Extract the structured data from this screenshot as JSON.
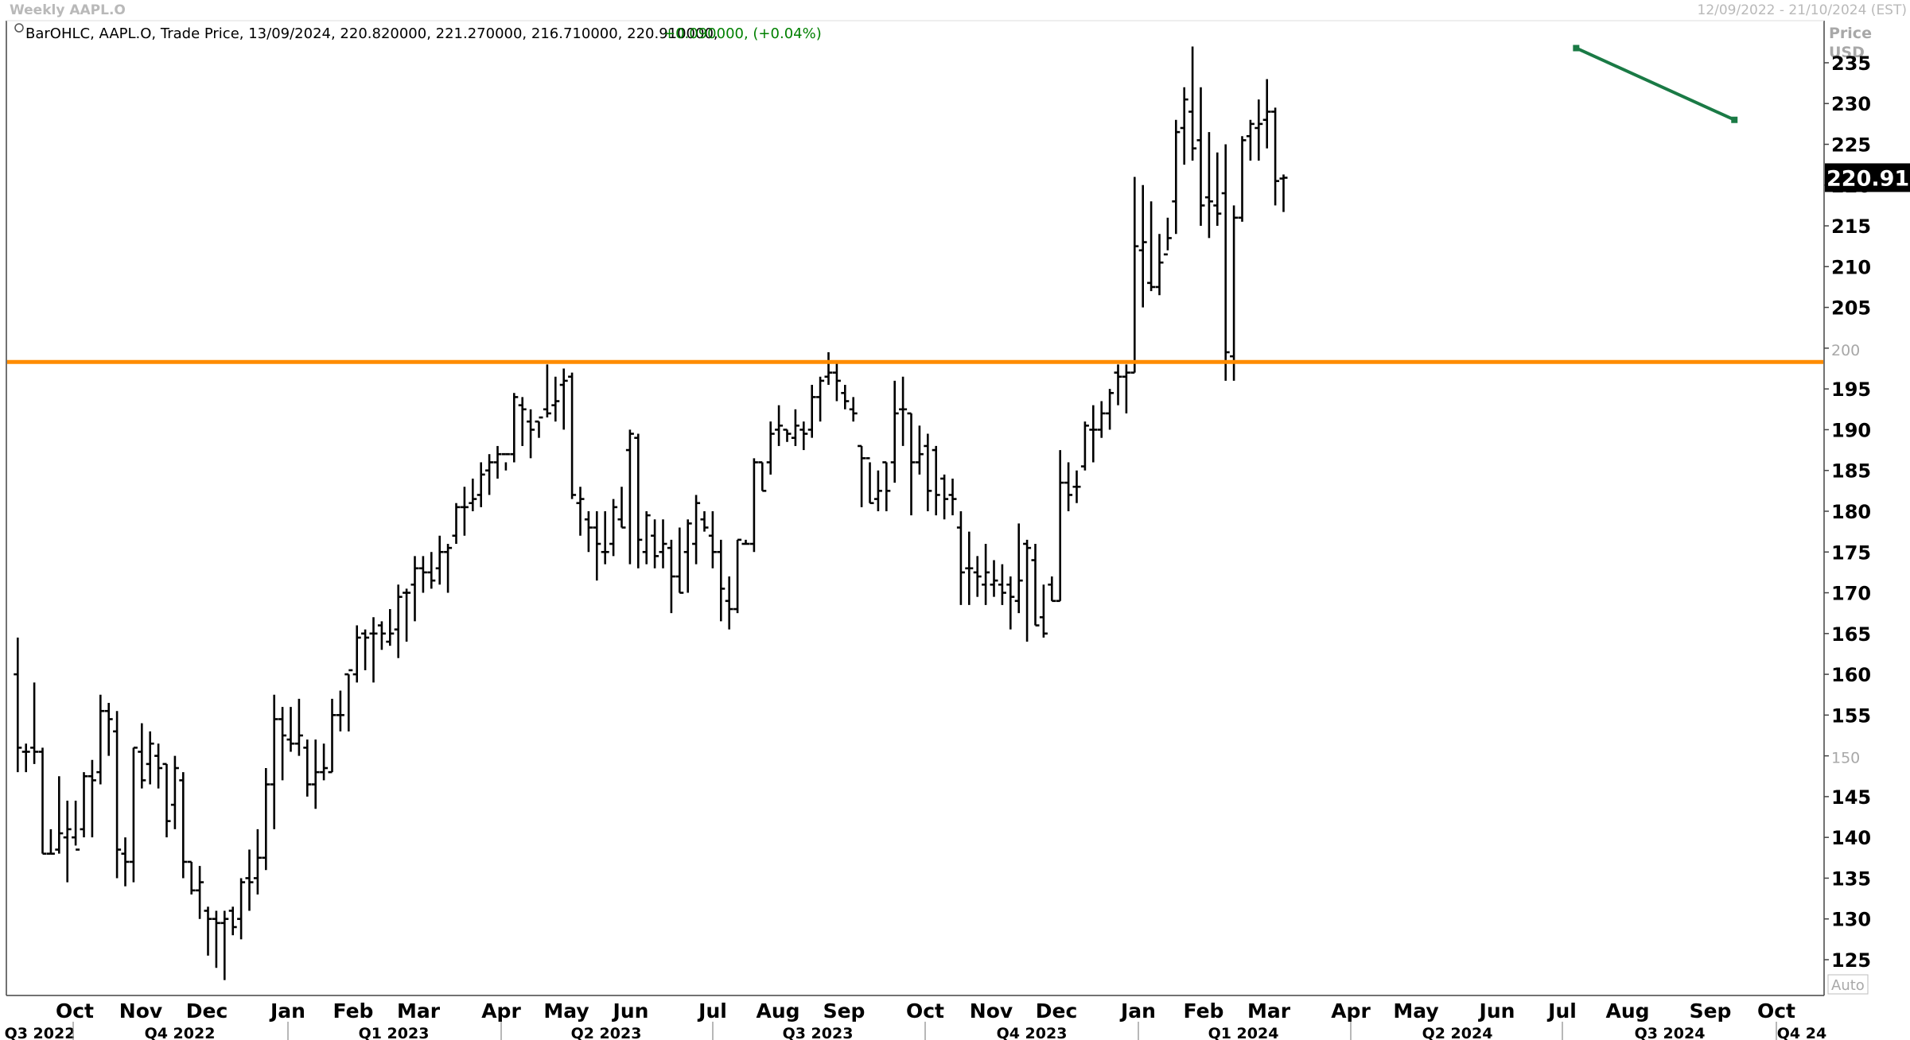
{
  "window": {
    "title": "Weekly AAPL.O",
    "date_range": "12/09/2022 - 21/10/2024 (EST)"
  },
  "legend": {
    "text": "BarOHLC, AAPL.O, Trade Price, 13/09/2024, 220.820000, 221.270000, 216.710000, 220.910000,",
    "change": "+0.090000, (+0.04%)"
  },
  "price_axis": {
    "header": "Price",
    "unit": "USD",
    "last_price": "220.910",
    "auto_label": "Auto"
  },
  "colors": {
    "bars": "#000000",
    "support_line": "#ff8c00",
    "trend_line": "#1a7a45",
    "change_text": "#008000",
    "last_price_bg": "#000000"
  },
  "chart_data": {
    "type": "ohlc",
    "symbol": "AAPL.O",
    "interval": "weekly",
    "ylim": [
      121,
      240
    ],
    "y_ticks": [
      125,
      130,
      135,
      140,
      145,
      150,
      155,
      160,
      165,
      170,
      175,
      180,
      185,
      190,
      195,
      200,
      205,
      210,
      215,
      220,
      225,
      230,
      235
    ],
    "y_minor_ticks": [
      150,
      200
    ],
    "x_months": [
      "Oct",
      "Nov",
      "Dec",
      "Jan",
      "Feb",
      "Mar",
      "Apr",
      "May",
      "Jun",
      "Jul",
      "Aug",
      "Sep",
      "Oct",
      "Nov",
      "Dec",
      "Jan",
      "Feb",
      "Mar",
      "Apr",
      "May",
      "Jun",
      "Jul",
      "Aug",
      "Sep",
      "Oct"
    ],
    "x_quarters": [
      "Q3 2022",
      "Q4 2022",
      "Q1 2023",
      "Q2 2023",
      "Q3 2023",
      "Q4 2023",
      "Q1 2024",
      "Q2 2024",
      "Q3 2024",
      "Q4 24"
    ],
    "series": [
      {
        "name": "AAPL.O",
        "bars": [
          [
            160.0,
            164.5,
            148.0,
            151.0
          ],
          [
            150.5,
            151.5,
            148.0,
            150.5
          ],
          [
            151.0,
            159.0,
            149.0,
            150.5
          ],
          [
            150.5,
            151.0,
            138.0,
            138.0
          ],
          [
            138.0,
            141.0,
            138.0,
            138.0
          ],
          [
            138.5,
            147.5,
            138.0,
            140.5
          ],
          [
            140.0,
            144.5,
            134.5,
            141.0
          ],
          [
            140.0,
            144.5,
            139.0,
            138.5
          ],
          [
            141.0,
            148.0,
            140.0,
            147.5
          ],
          [
            147.5,
            149.5,
            140.0,
            147.0
          ],
          [
            148.0,
            157.5,
            146.5,
            155.5
          ],
          [
            155.5,
            156.5,
            150.0,
            154.5
          ],
          [
            153.0,
            155.5,
            135.0,
            138.5
          ],
          [
            138.0,
            140.0,
            134.0,
            137.0
          ],
          [
            137.0,
            151.0,
            134.5,
            151.0
          ],
          [
            150.5,
            154.0,
            146.0,
            147.0
          ],
          [
            149.0,
            153.0,
            146.5,
            151.5
          ],
          [
            150.0,
            151.5,
            146.0,
            148.5
          ],
          [
            149.0,
            149.0,
            140.0,
            142.0
          ],
          [
            144.0,
            150.0,
            141.0,
            148.5
          ],
          [
            147.0,
            148.0,
            135.0,
            137.0
          ],
          [
            137.0,
            137.0,
            133.0,
            133.5
          ],
          [
            133.5,
            136.5,
            130.0,
            134.5
          ],
          [
            131.0,
            131.5,
            125.5,
            130.0
          ],
          [
            130.0,
            131.0,
            124.0,
            129.5
          ],
          [
            129.5,
            131.0,
            122.5,
            130.0
          ],
          [
            131.0,
            131.5,
            128.0,
            129.0
          ],
          [
            130.0,
            135.0,
            127.5,
            134.5
          ],
          [
            135.0,
            138.5,
            131.0,
            134.5
          ],
          [
            135.0,
            141.0,
            133.0,
            137.5
          ],
          [
            137.5,
            148.5,
            136.0,
            146.5
          ],
          [
            146.5,
            157.5,
            141.0,
            154.5
          ],
          [
            154.5,
            156.0,
            147.0,
            152.5
          ],
          [
            152.0,
            156.0,
            150.5,
            151.5
          ],
          [
            151.5,
            157.0,
            150.0,
            152.5
          ],
          [
            151.0,
            152.0,
            145.0,
            146.5
          ],
          [
            146.5,
            152.0,
            143.5,
            148.0
          ],
          [
            148.0,
            151.5,
            147.0,
            148.5
          ],
          [
            148.0,
            157.0,
            148.0,
            155.0
          ],
          [
            155.0,
            158.0,
            153.0,
            155.0
          ],
          [
            160.0,
            160.0,
            153.0,
            160.5
          ],
          [
            160.0,
            166.0,
            159.0,
            164.5
          ],
          [
            165.0,
            165.5,
            160.5,
            164.5
          ],
          [
            165.0,
            167.0,
            159.0,
            165.0
          ],
          [
            166.0,
            166.5,
            163.0,
            165.0
          ],
          [
            164.0,
            168.0,
            163.5,
            165.0
          ],
          [
            165.5,
            171.0,
            162.0,
            169.5
          ],
          [
            170.0,
            170.5,
            164.0,
            170.0
          ],
          [
            171.0,
            174.5,
            166.5,
            173.0
          ],
          [
            173.0,
            174.5,
            170.0,
            172.5
          ],
          [
            172.5,
            175.0,
            170.5,
            171.5
          ],
          [
            173.0,
            177.0,
            171.0,
            175.0
          ],
          [
            175.0,
            176.0,
            170.0,
            175.5
          ],
          [
            177.0,
            181.0,
            176.0,
            180.5
          ],
          [
            180.5,
            183.0,
            177.0,
            180.5
          ],
          [
            181.0,
            184.0,
            180.0,
            181.5
          ],
          [
            182.0,
            186.0,
            180.5,
            184.5
          ],
          [
            185.0,
            187.0,
            182.0,
            186.0
          ],
          [
            186.0,
            188.0,
            184.0,
            187.0
          ],
          [
            187.0,
            186.0,
            185.0,
            187.0
          ],
          [
            187.0,
            194.5,
            186.0,
            194.0
          ],
          [
            193.0,
            194.0,
            188.0,
            192.5
          ],
          [
            191.0,
            192.5,
            186.5,
            190.0
          ],
          [
            191.0,
            191.0,
            189.0,
            191.5
          ],
          [
            192.5,
            198.0,
            191.5,
            192.0
          ],
          [
            193.0,
            196.5,
            191.0,
            193.5
          ],
          [
            195.5,
            197.5,
            190.0,
            196.0
          ],
          [
            196.5,
            197.0,
            181.5,
            182.0
          ],
          [
            181.0,
            183.0,
            177.0,
            181.5
          ],
          [
            179.0,
            180.0,
            175.0,
            178.0
          ],
          [
            178.0,
            180.0,
            171.5,
            176.0
          ],
          [
            175.0,
            180.0,
            173.5,
            175.0
          ],
          [
            176.0,
            181.5,
            174.5,
            180.5
          ],
          [
            179.0,
            183.0,
            178.0,
            178.0
          ],
          [
            187.5,
            190.0,
            173.5,
            189.5
          ],
          [
            189.0,
            189.5,
            173.0,
            176.5
          ],
          [
            175.0,
            180.0,
            173.5,
            179.5
          ],
          [
            177.0,
            179.0,
            173.0,
            174.5
          ],
          [
            175.0,
            179.0,
            173.0,
            176.0
          ],
          [
            175.5,
            176.5,
            167.5,
            172.0
          ],
          [
            172.0,
            178.0,
            170.0,
            170.0
          ],
          [
            175.0,
            179.0,
            170.0,
            178.5
          ],
          [
            176.0,
            182.0,
            173.5,
            181.0
          ],
          [
            179.0,
            180.0,
            177.5,
            178.0
          ],
          [
            177.0,
            180.0,
            173.0,
            175.0
          ],
          [
            175.0,
            176.5,
            166.5,
            170.5
          ],
          [
            169.0,
            172.0,
            165.5,
            168.0
          ],
          [
            168.0,
            176.5,
            167.5,
            176.5
          ],
          [
            176.0,
            176.5,
            176.0,
            176.0
          ],
          [
            176.0,
            186.5,
            175.0,
            186.0
          ],
          [
            186.0,
            186.0,
            182.5,
            182.5
          ],
          [
            186.0,
            191.0,
            184.5,
            189.5
          ],
          [
            190.0,
            193.0,
            188.0,
            190.5
          ],
          [
            190.0,
            190.0,
            188.5,
            189.5
          ],
          [
            189.0,
            192.5,
            188.0,
            190.5
          ],
          [
            190.0,
            191.0,
            187.5,
            189.5
          ],
          [
            190.0,
            195.5,
            189.0,
            194.0
          ],
          [
            194.0,
            196.5,
            191.0,
            196.0
          ],
          [
            196.5,
            199.5,
            195.5,
            197.0
          ],
          [
            197.0,
            198.5,
            193.5,
            196.0
          ],
          [
            194.5,
            195.5,
            192.5,
            193.5
          ],
          [
            192.5,
            194.0,
            191.0,
            192.0
          ],
          [
            188.0,
            188.0,
            180.5,
            186.5
          ],
          [
            186.5,
            186.0,
            181.0,
            181.0
          ],
          [
            181.5,
            185.0,
            180.0,
            182.5
          ],
          [
            186.0,
            186.0,
            180.0,
            182.5
          ],
          [
            186.0,
            196.0,
            183.5,
            192.0
          ],
          [
            192.5,
            196.5,
            188.0,
            192.5
          ],
          [
            192.0,
            192.0,
            179.5,
            186.0
          ],
          [
            186.0,
            190.5,
            184.5,
            187.0
          ],
          [
            188.0,
            189.5,
            180.0,
            182.5
          ],
          [
            187.5,
            188.0,
            179.5,
            182.0
          ],
          [
            184.0,
            184.5,
            179.0,
            181.5
          ],
          [
            182.0,
            184.0,
            179.5,
            181.5
          ],
          [
            178.0,
            180.0,
            168.5,
            172.5
          ],
          [
            173.0,
            177.5,
            168.5,
            173.0
          ],
          [
            172.5,
            174.5,
            169.5,
            172.0
          ],
          [
            171.0,
            176.0,
            168.5,
            172.5
          ],
          [
            171.0,
            174.0,
            169.5,
            171.5
          ],
          [
            171.0,
            173.5,
            168.5,
            170.0
          ],
          [
            171.0,
            172.0,
            165.5,
            169.5
          ],
          [
            169.0,
            178.5,
            167.5,
            171.5
          ],
          [
            176.0,
            176.5,
            164.0,
            175.5
          ],
          [
            174.0,
            176.0,
            166.0,
            166.0
          ],
          [
            167.0,
            171.0,
            164.5,
            165.0
          ],
          [
            171.0,
            172.0,
            169.0,
            169.0
          ],
          [
            169.0,
            187.5,
            169.0,
            183.5
          ],
          [
            183.5,
            186.0,
            180.0,
            182.0
          ],
          [
            183.0,
            185.0,
            181.0,
            183.0
          ],
          [
            185.5,
            191.0,
            185.0,
            190.5
          ],
          [
            190.0,
            193.0,
            186.0,
            190.0
          ],
          [
            190.0,
            193.5,
            189.0,
            192.0
          ],
          [
            192.0,
            195.0,
            190.0,
            194.5
          ],
          [
            197.0,
            198.0,
            193.0,
            196.5
          ],
          [
            196.5,
            198.0,
            192.0,
            197.0
          ],
          [
            197.0,
            221.0,
            197.0,
            212.5
          ],
          [
            212.0,
            220.0,
            205.0,
            213.0
          ],
          [
            208.0,
            218.0,
            207.0,
            207.5
          ],
          [
            207.5,
            214.0,
            206.5,
            210.5
          ],
          [
            211.5,
            216.0,
            212.0,
            213.5
          ],
          [
            218.0,
            228.0,
            214.0,
            226.5
          ],
          [
            227.0,
            232.0,
            222.5,
            230.5
          ],
          [
            229.0,
            237.0,
            223.0,
            224.5
          ],
          [
            225.5,
            232.0,
            215.0,
            217.5
          ],
          [
            218.5,
            226.5,
            213.5,
            218.0
          ],
          [
            217.5,
            224.0,
            215.0,
            216.5
          ],
          [
            219.0,
            225.0,
            196.0,
            199.5
          ],
          [
            199.0,
            217.5,
            196.0,
            216.0
          ],
          [
            216.0,
            226.0,
            215.5,
            225.5
          ],
          [
            226.0,
            228.0,
            223.0,
            227.5
          ],
          [
            227.0,
            230.5,
            223.0,
            227.5
          ],
          [
            228.0,
            233.0,
            224.5,
            229.0
          ],
          [
            229.0,
            229.5,
            217.5,
            220.5
          ],
          [
            220.8,
            221.3,
            216.7,
            220.9
          ]
        ]
      }
    ],
    "support_level": 198.3,
    "trendline": {
      "start": [
        1295,
        236.8
      ],
      "end": [
        1425,
        228.0
      ]
    },
    "last_value": 220.91
  }
}
